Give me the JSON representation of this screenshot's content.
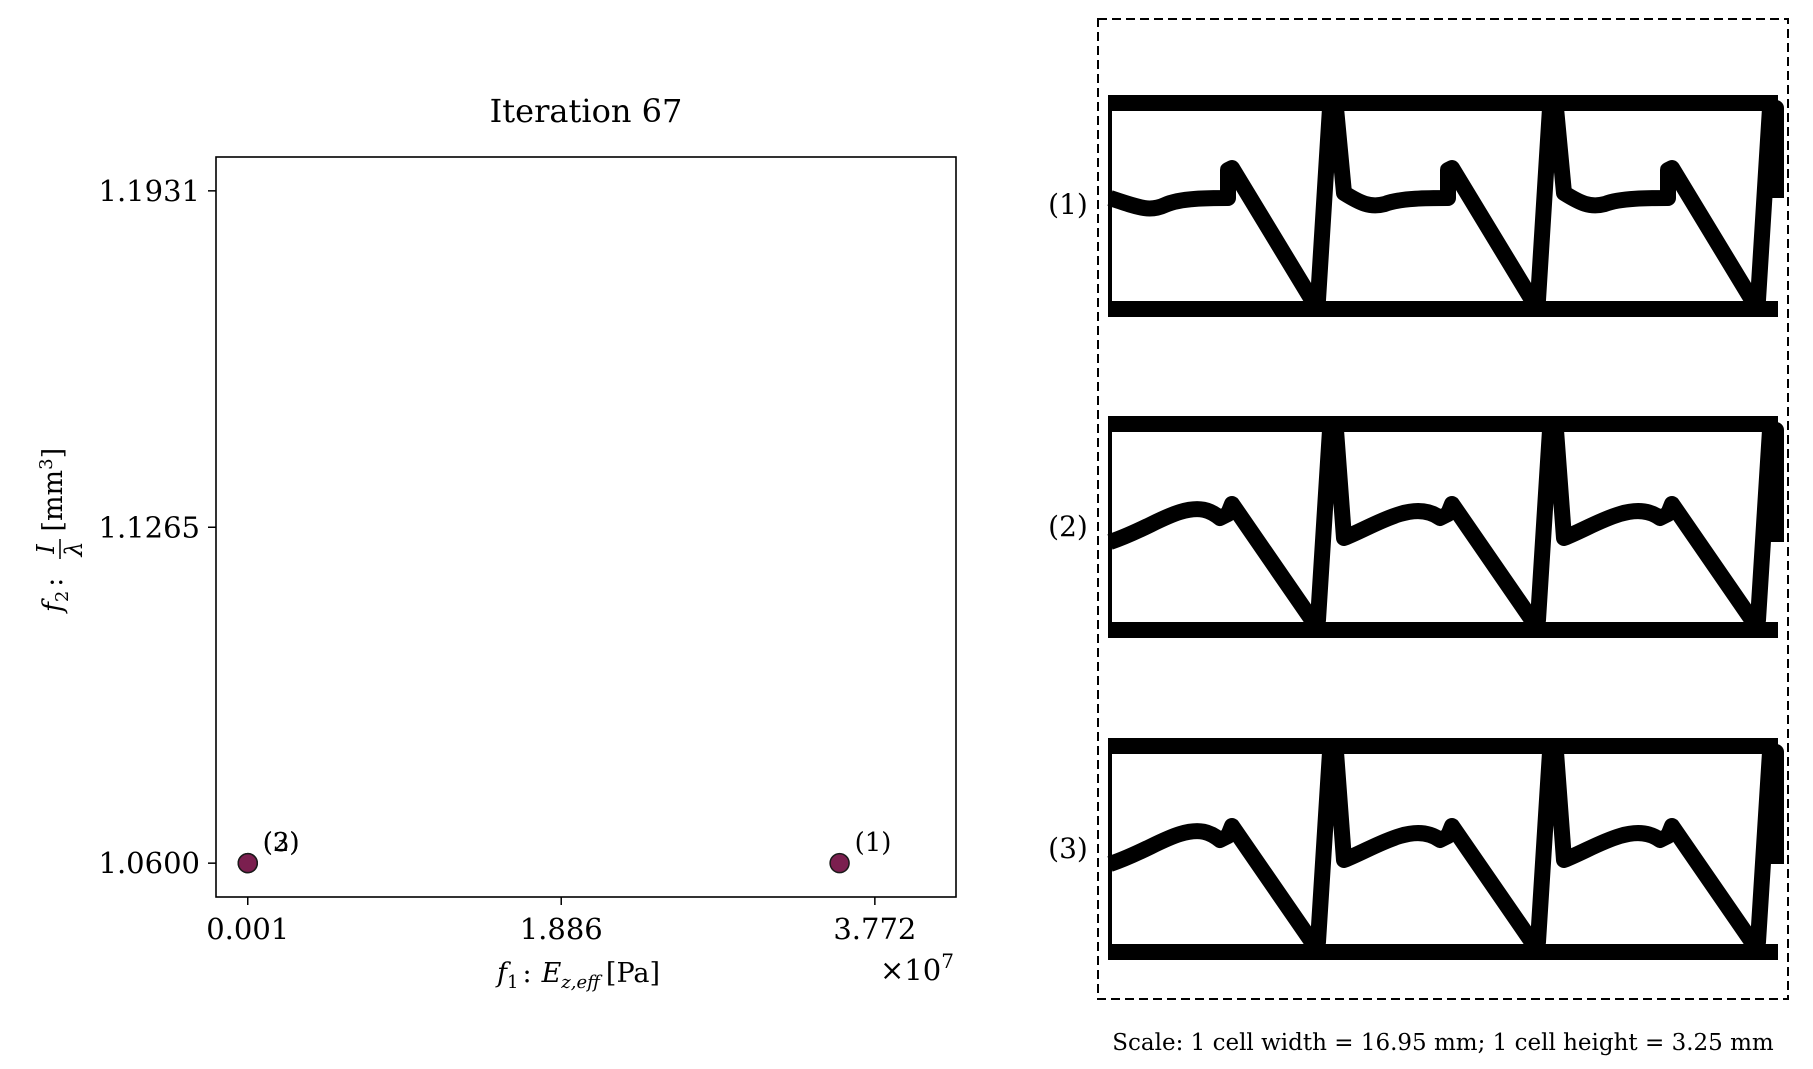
{
  "chart_data": {
    "type": "scatter",
    "title": "Iteration 67",
    "xlabel": "f₁ :  E z,eff [Pa]",
    "xlabel_parts": {
      "f": "f",
      "f_sub": "1",
      "sep": ":",
      "E": "E",
      "E_sub": "z,eff",
      "unit": "[Pa]"
    },
    "ylabel": "f₂ : I/λ [mm³]",
    "ylabel_parts": {
      "f": "f",
      "f_sub": "2",
      "sep": ":",
      "num": "I",
      "den": "λ",
      "unit_open": "[mm",
      "unit_sup": "3",
      "unit_close": "]"
    },
    "x_ticks": [
      0.001,
      1.886,
      3.772
    ],
    "x_tick_labels": [
      "0.001",
      "1.886",
      "3.772"
    ],
    "x_multiplier": {
      "base": "×10",
      "exponent": "7"
    },
    "y_ticks": [
      1.06,
      1.1265,
      1.1931
    ],
    "y_tick_labels": [
      "1.0600",
      "1.1265",
      "1.1931"
    ],
    "xlim": [
      -0.19,
      4.26
    ],
    "ylim": [
      1.0533,
      1.1998
    ],
    "grid": false,
    "point_color": "#7b1f4f",
    "points": [
      {
        "label": "(1)",
        "x": 3.56,
        "y": 1.06
      },
      {
        "label": "(2)",
        "x": 0.001,
        "y": 1.06
      },
      {
        "label": "(3)",
        "x": 0.001,
        "y": 1.06
      }
    ]
  },
  "designs_panel": {
    "labels": [
      "(1)",
      "(2)",
      "(3)"
    ],
    "scale_caption": "Scale: 1 cell width = 16.95 mm; 1 cell height = 3.25 mm"
  }
}
